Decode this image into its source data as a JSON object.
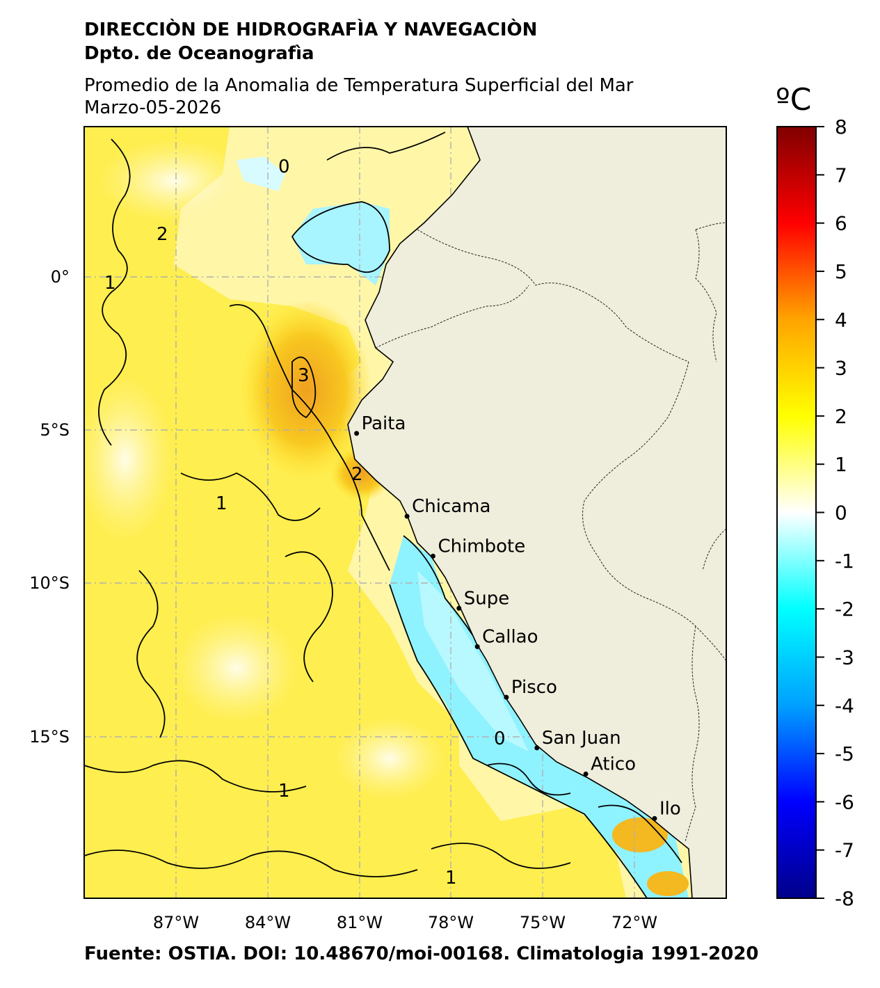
{
  "header": {
    "institution": "DIRECCIÒN DE HIDROGRAFÌA Y NAVEGACIÒN",
    "department": "Dpto. de Oceanografìa",
    "title": "Promedio de la Anomalia de Temperatura Superficial del Mar",
    "date": "Marzo-05-2026"
  },
  "map": {
    "lon_ticks": [
      "87°W",
      "84°W",
      "81°W",
      "78°W",
      "75°W",
      "72°W"
    ],
    "lat_ticks": [
      "0°",
      "5°S",
      "10°S",
      "15°S"
    ],
    "cities": [
      {
        "name": "Paita",
        "lon": -81.1,
        "lat": -5.1
      },
      {
        "name": "Chicama",
        "lon": -79.45,
        "lat": -7.8
      },
      {
        "name": "Chimbote",
        "lon": -78.6,
        "lat": -9.1
      },
      {
        "name": "Supe",
        "lon": -77.75,
        "lat": -10.8
      },
      {
        "name": "Callao",
        "lon": -77.15,
        "lat": -12.05
      },
      {
        "name": "Pisco",
        "lon": -76.2,
        "lat": -13.7
      },
      {
        "name": "San Juan",
        "lon": -75.2,
        "lat": -15.35
      },
      {
        "name": "Atico",
        "lon": -73.6,
        "lat": -16.2
      },
      {
        "name": "Ilo",
        "lon": -71.35,
        "lat": -17.65
      }
    ],
    "contour_labels": [
      "1",
      "0",
      "2",
      "3",
      "1",
      "2",
      "0",
      "1",
      "1"
    ],
    "colors": {
      "land": "#efeddb",
      "ocean_warm": "#ffee44",
      "ocean_cold": "#7ff0ff",
      "hot_spot": "#f4a820"
    }
  },
  "colorbar": {
    "unit": "ºC",
    "ticks": [
      "8",
      "7",
      "6",
      "5",
      "4",
      "3",
      "2",
      "1",
      "0",
      "-1",
      "-2",
      "-3",
      "-4",
      "-5",
      "-6",
      "-7",
      "-8"
    ],
    "min": -8,
    "max": 8,
    "colors": [
      "#00008a",
      "#0000ff",
      "#00a0ff",
      "#00ffff",
      "#ffffff",
      "#ffff00",
      "#ffa500",
      "#ff0000",
      "#800000"
    ]
  },
  "footer": "Fuente: OSTIA. DOI: 10.48670/moi-00168. Climatologia 1991-2020"
}
